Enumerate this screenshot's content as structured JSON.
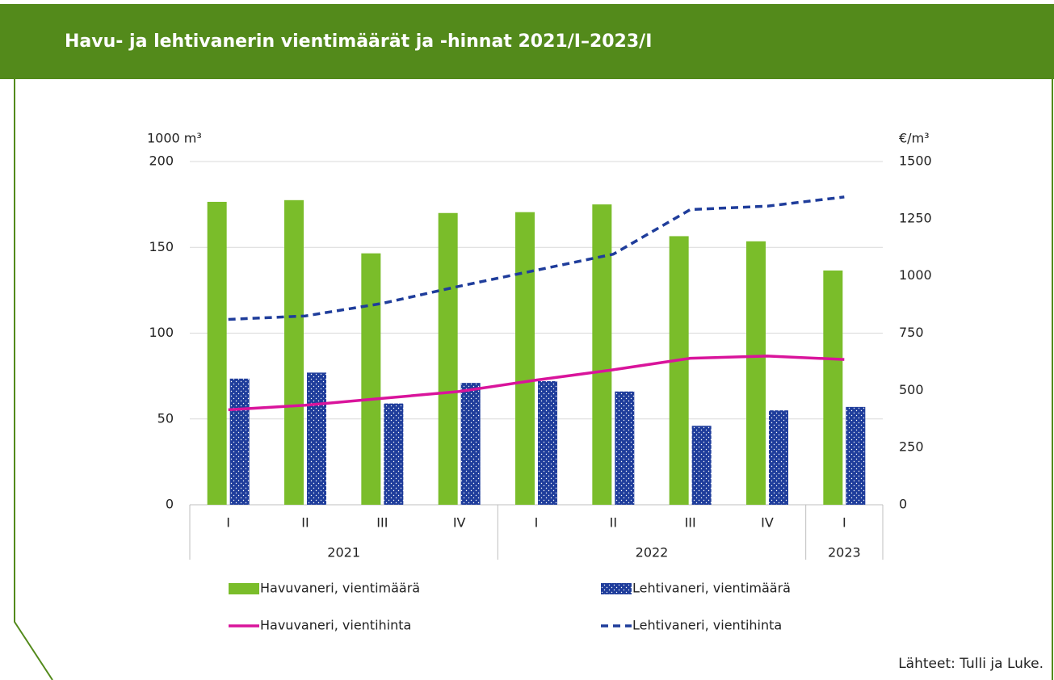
{
  "chart_data": {
    "type": "bar_line",
    "title": "Havu- ja lehtivanerin vientimäärät ja -hinnat 2021/I–2023/I",
    "y_axis_label": "1000 m³",
    "y2_axis_label": "€/m³",
    "source": "Lähteet:  Tulli ja Luke.",
    "categories": [
      "I",
      "II",
      "III",
      "IV",
      "I",
      "II",
      "III",
      "IV",
      "I"
    ],
    "groups": [
      {
        "label": "2021",
        "count": 4
      },
      {
        "label": "2022",
        "count": 4
      },
      {
        "label": "2023",
        "count": 1
      }
    ],
    "ylim": [
      0,
      200
    ],
    "yticks": [
      0,
      50,
      100,
      150,
      200
    ],
    "y2lim": [
      0,
      1500
    ],
    "y2ticks": [
      0,
      250,
      500,
      750,
      1000,
      1250,
      1500
    ],
    "grid": true,
    "series": [
      {
        "name": "Havuvaneri, vientimäärä",
        "type": "bar",
        "color": "#7abd2a",
        "values": [
          176.5,
          177.5,
          146.5,
          170,
          170.5,
          175,
          156.5,
          153.5,
          136.5
        ]
      },
      {
        "name": "Lehtivaneri, vientimäärä",
        "type": "bar",
        "color": "#1f3d9b",
        "pattern": "dots",
        "values": [
          73.5,
          77,
          59,
          71,
          72,
          66,
          46,
          55,
          57
        ]
      },
      {
        "name": "Havuvaneri, vientihinta",
        "type": "line",
        "axis": "y2",
        "color": "#d9149b",
        "values": [
          415,
          435,
          465,
          495,
          545,
          590,
          640,
          650,
          635
        ]
      },
      {
        "name": "Lehtivaneri, vientihinta",
        "type": "line",
        "axis": "y2",
        "color": "#1f3d9b",
        "dashed": true,
        "values": [
          810,
          825,
          880,
          955,
          1025,
          1095,
          1290,
          1305,
          1345
        ]
      }
    ]
  }
}
